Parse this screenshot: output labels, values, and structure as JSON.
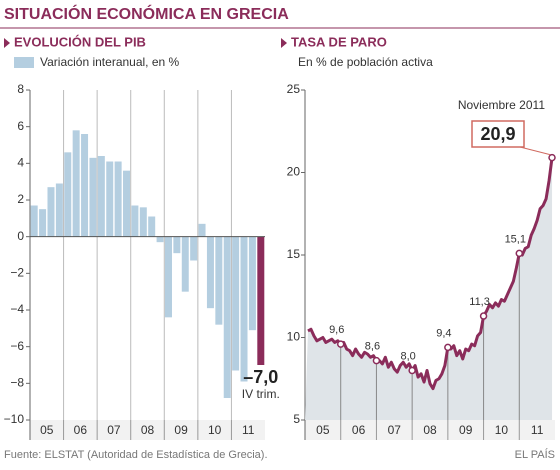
{
  "title": "SITUACIÓN ECONÓMICA EN GRECIA",
  "source": "Fuente: ELSTAT (Autoridad de Estadística de Grecia).",
  "brand": "EL PAÍS",
  "chart_data": [
    {
      "type": "bar",
      "title": "EVOLUCIÓN DEL PIB",
      "year_labels": [
        "05",
        "06",
        "07",
        "08",
        "09",
        "10",
        "11"
      ],
      "series": [
        {
          "name": "Variación interanual, en %",
          "color": "#b4cee0",
          "values": [
            1.7,
            1.5,
            2.7,
            2.9,
            4.6,
            5.8,
            5.6,
            4.3,
            4.4,
            4.1,
            4.1,
            3.6,
            1.7,
            1.6,
            1.1,
            -0.3,
            -4.4,
            -0.9,
            -3.0,
            -1.3,
            0.7,
            -3.9,
            -4.8,
            -8.8,
            -7.3,
            -7.9,
            -5.1,
            -7.0
          ],
          "value_labels": [
            null,
            null,
            null,
            null,
            null,
            null,
            null,
            null,
            null,
            null,
            null,
            null,
            null,
            null,
            null,
            null,
            null,
            null,
            null,
            null,
            null,
            null,
            null,
            null,
            null,
            null,
            null,
            "–7,0"
          ]
        }
      ],
      "highlight_color": "#8b2c5a",
      "annotation": "IV trim.",
      "ylim": [
        -10,
        8
      ],
      "yticks": [
        8,
        6,
        4,
        2,
        0,
        {
          "value": -2,
          "label": "−2"
        },
        {
          "value": -4,
          "label": "−4"
        },
        {
          "value": -6,
          "label": "−6"
        },
        {
          "value": -8,
          "label": "−8"
        },
        {
          "value": -10,
          "label": "−10"
        }
      ]
    },
    {
      "type": "area",
      "title": "TASA DE PARO",
      "subtitle": "En % de población activa",
      "year_labels": [
        "05",
        "06",
        "07",
        "08",
        "09",
        "10",
        "11"
      ],
      "series": [
        {
          "color": "#8b2c5a",
          "values": [
            10.4,
            10.5,
            10.1,
            9.8,
            9.9,
            10.0,
            9.7,
            9.8,
            9.9,
            9.7,
            9.8,
            9.6,
            9.7,
            9.3,
            9.2,
            8.9,
            9.3,
            9.0,
            8.8,
            9.1,
            9.0,
            8.8,
            8.9,
            8.6,
            8.6,
            8.4,
            8.8,
            8.2,
            8.5,
            8.1,
            7.9,
            8.3,
            8.5,
            8.2,
            8.4,
            8.0,
            8.3,
            7.6,
            7.8,
            7.3,
            8.0,
            7.2,
            6.9,
            7.4,
            7.5,
            7.8,
            8.3,
            9.4,
            9.3,
            9.5,
            8.9,
            9.2,
            8.7,
            9.3,
            9.2,
            9.6,
            9.5,
            10.1,
            10.3,
            11.3,
            11.6,
            12.0,
            11.8,
            12.1,
            11.9,
            12.3,
            12.2,
            12.6,
            13.0,
            13.4,
            14.2,
            15.1,
            15.0,
            15.4,
            15.5,
            16.2,
            16.6,
            17.1,
            17.8,
            18.0,
            18.4,
            19.5,
            20.9
          ],
          "value_labels": [
            null,
            null,
            null,
            null,
            null,
            null,
            null,
            null,
            null,
            null,
            null,
            "9,6",
            null,
            null,
            null,
            null,
            null,
            null,
            null,
            null,
            null,
            null,
            null,
            "8,6",
            null,
            null,
            null,
            null,
            null,
            null,
            null,
            null,
            null,
            null,
            null,
            "8,0",
            null,
            null,
            null,
            null,
            null,
            null,
            null,
            null,
            null,
            null,
            null,
            "9,4",
            null,
            null,
            null,
            null,
            null,
            null,
            null,
            null,
            null,
            null,
            null,
            "11,3",
            null,
            null,
            null,
            null,
            null,
            null,
            null,
            null,
            null,
            null,
            null,
            "15,1",
            null,
            null,
            null,
            null,
            null,
            null,
            null,
            null,
            null,
            null,
            "20,9"
          ]
        }
      ],
      "fill": "#dfe4e8",
      "annotation": "Noviembre 2011",
      "ylim": [
        5,
        25
      ],
      "yticks": [
        5,
        10,
        15,
        20,
        25
      ]
    }
  ]
}
